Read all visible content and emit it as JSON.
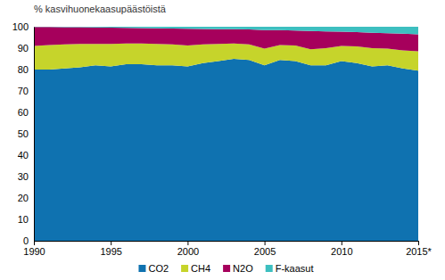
{
  "chart_data": {
    "type": "area",
    "stacked": true,
    "ylabel": "% kasvihuonekaasupäästöistä",
    "x": [
      1990,
      1991,
      1992,
      1993,
      1994,
      1995,
      1996,
      1997,
      1998,
      1999,
      2000,
      2001,
      2002,
      2003,
      2004,
      2005,
      2006,
      2007,
      2008,
      2009,
      2010,
      2011,
      2012,
      2013,
      2014,
      2015
    ],
    "xlim": [
      1990,
      2015
    ],
    "xticks": [
      1990,
      1995,
      2000,
      2005,
      2010,
      {
        "value": 2015,
        "label": "2015*"
      }
    ],
    "ylim": [
      0,
      100
    ],
    "yticks": [
      0,
      10,
      20,
      30,
      40,
      50,
      60,
      70,
      80,
      90,
      100
    ],
    "grid": false,
    "legend": "bottom",
    "series": [
      {
        "name": "CO2",
        "color": "#0f72b0",
        "values": [
          80,
          80,
          80.5,
          81,
          82,
          81.5,
          82.5,
          82.5,
          82,
          82,
          81.5,
          83,
          84,
          85,
          84.5,
          82,
          84.5,
          84,
          82,
          82,
          84,
          83,
          81.5,
          82,
          80.5,
          79.5
        ]
      },
      {
        "name": "CH4",
        "color": "#c6d42b",
        "values": [
          11,
          11.5,
          11.3,
          11,
          10,
          10.5,
          9.7,
          9.7,
          10,
          9.8,
          9.7,
          8.8,
          8,
          7.2,
          7.3,
          7.8,
          7,
          7.2,
          7.5,
          8,
          7,
          7.8,
          8.5,
          7.8,
          8.5,
          9
        ]
      },
      {
        "name": "N2O",
        "color": "#a6005c",
        "values": [
          8.9,
          8.4,
          8,
          7.8,
          7.7,
          7.6,
          7.3,
          7.2,
          7.3,
          7.4,
          7.9,
          7.2,
          6.9,
          6.7,
          7,
          8.6,
          6.9,
          7,
          8.5,
          7.8,
          6.7,
          6.7,
          7.2,
          7.2,
          7.8,
          8
        ]
      },
      {
        "name": "F-kaasut",
        "color": "#3dbfc0",
        "values": [
          0.1,
          0.1,
          0.2,
          0.2,
          0.3,
          0.4,
          0.5,
          0.6,
          0.7,
          0.8,
          0.9,
          1,
          1.1,
          1.1,
          1.2,
          1.6,
          1.6,
          1.8,
          2,
          2.2,
          2.3,
          2.5,
          2.8,
          3,
          3.2,
          3.5
        ]
      }
    ]
  }
}
